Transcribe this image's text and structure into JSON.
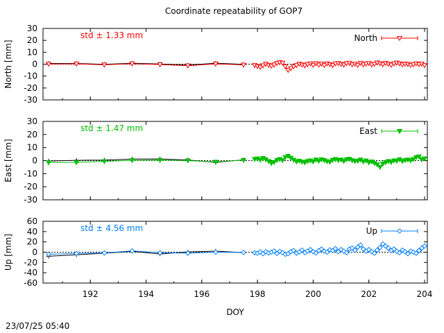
{
  "title": "Coordinate repeatability of GOP7",
  "timestamp": "23/07/25 05:40",
  "colors": {
    "north": "#ff0000",
    "east": "#00c000",
    "up": "#0080ff",
    "reference": "#000000",
    "axes": "#000000"
  },
  "chart_data": [
    {
      "type": "line",
      "ylabel": "North [mm]",
      "xlabel": "",
      "xlim": [
        190.3,
        204.1
      ],
      "ylim": [
        -30,
        30
      ],
      "yticks": [
        30,
        20,
        10,
        0,
        -10,
        -20,
        -30
      ],
      "xticks": [
        192,
        194,
        196,
        198,
        200,
        202,
        204
      ],
      "grid": false,
      "legend": "top-right",
      "annotation": "std ± 1.33 mm",
      "series": [
        {
          "name": "North",
          "marker": "triangle-down-open",
          "x": [
            190.5,
            191.5,
            192.5,
            193.5,
            194.5,
            195.5,
            196.5,
            197.5
          ],
          "y": [
            0.2,
            0.3,
            -0.5,
            0.4,
            -0.3,
            -1.3,
            0.3,
            -0.6
          ]
        },
        {
          "name": "",
          "marker": "cross",
          "x": [
            190.5,
            191.5,
            192.5,
            193.5,
            194.5,
            195.5,
            196.5,
            197.5
          ],
          "y": [
            0.6,
            0.6,
            -0.1,
            0.8,
            0.1,
            -0.8,
            0.8,
            -0.2
          ]
        },
        {
          "name": "",
          "marker": "triangle-down-open",
          "x": [
            197.9,
            198.0,
            198.1,
            198.2,
            198.3,
            198.4,
            198.5,
            198.6,
            198.7,
            198.8,
            198.9,
            199.0,
            199.1,
            199.2,
            199.3,
            199.4,
            199.5,
            199.6,
            199.7,
            199.8,
            199.9,
            200.0,
            200.1,
            200.2,
            200.3,
            200.4,
            200.5,
            200.6,
            200.7,
            200.8,
            200.9,
            201.0,
            201.1,
            201.2,
            201.3,
            201.4,
            201.5,
            201.6,
            201.7,
            201.8,
            201.9,
            202.0,
            202.1,
            202.2,
            202.3,
            202.4,
            202.5,
            202.6,
            202.7,
            202.8,
            202.9,
            203.0,
            203.1,
            203.2,
            203.3,
            203.4,
            203.5,
            203.6,
            203.7,
            203.8,
            203.9,
            204.0
          ],
          "y": [
            -1.0,
            -1.8,
            -2.5,
            -1.2,
            0.2,
            -0.8,
            -1.5,
            -0.5,
            0.8,
            1.5,
            1.0,
            -2.0,
            -5.0,
            -3.5,
            -2.0,
            -1.0,
            0.2,
            -0.5,
            -1.2,
            -0.2,
            0.5,
            -0.8,
            0.6,
            -0.6,
            0.3,
            -0.9,
            0.4,
            -0.2,
            -1.0,
            0.5,
            0.8,
            0.0,
            -0.6,
            0.7,
            1.0,
            -0.3,
            0.2,
            -0.8,
            0.9,
            -0.4,
            0.3,
            0.8,
            -0.5,
            0.2,
            1.2,
            0.6,
            -0.3,
            0.9,
            0.1,
            -0.7,
            0.4,
            1.1,
            0.5,
            -0.4,
            0.3,
            0.0,
            -0.8,
            -0.3,
            0.5,
            -0.2,
            0.3,
            -1.0
          ]
        }
      ]
    },
    {
      "type": "line",
      "ylabel": "East [mm]",
      "xlabel": "",
      "xlim": [
        190.3,
        204.1
      ],
      "ylim": [
        -30,
        30
      ],
      "yticks": [
        30,
        20,
        10,
        0,
        -10,
        -20,
        -30
      ],
      "xticks": [
        192,
        194,
        196,
        198,
        200,
        202,
        204
      ],
      "grid": false,
      "legend": "top-right",
      "annotation": "std ± 1.47 mm",
      "series": [
        {
          "name": "East",
          "marker": "triangle-down-filled",
          "x": [
            190.5,
            191.5,
            192.5,
            193.5,
            194.5,
            195.5,
            196.5,
            197.5
          ],
          "y": [
            -1.5,
            -1.4,
            -0.6,
            0.2,
            0.3,
            0.0,
            -1.0,
            0.3
          ]
        },
        {
          "name": "",
          "marker": "cross",
          "x": [
            190.5,
            191.5,
            192.5,
            193.5,
            194.5,
            195.5,
            196.5,
            197.5
          ],
          "y": [
            -0.3,
            0.2,
            0.4,
            1.2,
            1.3,
            0.5,
            -1.4,
            0.6
          ]
        },
        {
          "name": "",
          "marker": "triangle-down-filled",
          "x": [
            197.9,
            198.0,
            198.1,
            198.2,
            198.3,
            198.4,
            198.5,
            198.6,
            198.7,
            198.8,
            198.9,
            199.0,
            199.1,
            199.2,
            199.3,
            199.4,
            199.5,
            199.6,
            199.7,
            199.8,
            199.9,
            200.0,
            200.1,
            200.2,
            200.3,
            200.4,
            200.5,
            200.6,
            200.7,
            200.8,
            200.9,
            201.0,
            201.1,
            201.2,
            201.3,
            201.4,
            201.5,
            201.6,
            201.7,
            201.8,
            201.9,
            202.0,
            202.1,
            202.2,
            202.3,
            202.4,
            202.5,
            202.6,
            202.7,
            202.8,
            202.9,
            203.0,
            203.1,
            203.2,
            203.3,
            203.4,
            203.5,
            203.6,
            203.7,
            203.8,
            203.9,
            204.0
          ],
          "y": [
            1.0,
            1.5,
            0.5,
            1.8,
            0.8,
            -0.5,
            -2.0,
            -1.2,
            0.3,
            1.0,
            0.2,
            2.5,
            3.5,
            2.0,
            0.5,
            -0.8,
            -0.2,
            -1.0,
            -1.5,
            -0.5,
            0.0,
            -0.8,
            0.6,
            -0.3,
            0.8,
            0.2,
            -0.6,
            -1.0,
            0.4,
            1.0,
            0.3,
            0.6,
            -0.4,
            0.8,
            1.2,
            0.2,
            -0.5,
            -0.2,
            0.6,
            -0.8,
            0.0,
            -1.5,
            -0.8,
            -2.0,
            -3.0,
            -5.0,
            -2.5,
            -1.5,
            -0.5,
            -1.2,
            0.0,
            -0.3,
            0.8,
            -0.5,
            0.2,
            0.6,
            0.0,
            1.0,
            2.5,
            3.0,
            0.8,
            1.5
          ]
        }
      ]
    },
    {
      "type": "line",
      "ylabel": "Up [mm]",
      "xlabel": "DOY",
      "xlim": [
        190.3,
        204.1
      ],
      "ylim": [
        -60,
        60
      ],
      "yticks": [
        60,
        40,
        20,
        0,
        -20,
        -40,
        -60
      ],
      "xticks": [
        192,
        194,
        196,
        198,
        200,
        202,
        204
      ],
      "grid": false,
      "legend": "top-right",
      "annotation": "std ± 4.56 mm",
      "series": [
        {
          "name": "Up",
          "marker": "diamond-open",
          "x": [
            190.5,
            191.5,
            192.5,
            193.5,
            194.5,
            195.5,
            196.5,
            197.5
          ],
          "y": [
            -4.0,
            -2.5,
            -1.5,
            2.5,
            -1.0,
            -2.0,
            0.0,
            -0.5
          ]
        },
        {
          "name": "",
          "marker": "cross",
          "x": [
            190.5,
            191.5,
            192.5,
            193.5,
            194.5,
            195.5,
            196.5,
            197.5
          ],
          "y": [
            -8.0,
            -5.0,
            -2.0,
            1.5,
            -3.5,
            0.5,
            2.0,
            -0.8
          ]
        },
        {
          "name": "",
          "marker": "diamond-open",
          "x": [
            197.9,
            198.0,
            198.1,
            198.2,
            198.3,
            198.4,
            198.5,
            198.6,
            198.7,
            198.8,
            198.9,
            199.0,
            199.1,
            199.2,
            199.3,
            199.4,
            199.5,
            199.6,
            199.7,
            199.8,
            199.9,
            200.0,
            200.1,
            200.2,
            200.3,
            200.4,
            200.5,
            200.6,
            200.7,
            200.8,
            200.9,
            201.0,
            201.1,
            201.2,
            201.3,
            201.4,
            201.5,
            201.6,
            201.7,
            201.8,
            201.9,
            202.0,
            202.1,
            202.2,
            202.3,
            202.4,
            202.5,
            202.6,
            202.7,
            202.8,
            202.9,
            203.0,
            203.1,
            203.2,
            203.3,
            203.4,
            203.5,
            203.6,
            203.7,
            203.8,
            203.9,
            204.0
          ],
          "y": [
            -1.0,
            -2.0,
            0.5,
            -3.0,
            1.0,
            -1.5,
            0.0,
            2.0,
            -2.5,
            1.5,
            -1.0,
            -4.0,
            -3.0,
            1.0,
            3.0,
            -2.0,
            0.5,
            4.0,
            -1.0,
            2.0,
            5.0,
            1.0,
            -1.5,
            3.0,
            6.0,
            2.0,
            0.0,
            4.5,
            3.0,
            7.0,
            1.0,
            5.0,
            2.0,
            -1.0,
            6.0,
            8.0,
            4.0,
            10.0,
            14.0,
            6.0,
            2.0,
            5.0,
            1.0,
            -2.0,
            4.0,
            9.0,
            16.0,
            12.0,
            8.0,
            3.0,
            6.0,
            2.0,
            -1.0,
            4.0,
            1.0,
            -3.0,
            2.0,
            0.0,
            -2.0,
            3.0,
            8.0,
            12.0
          ]
        }
      ]
    }
  ]
}
